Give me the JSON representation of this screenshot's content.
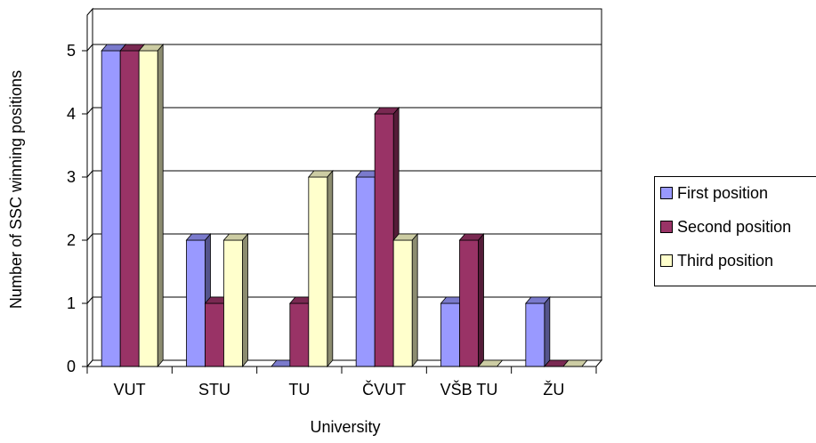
{
  "chart_data": {
    "type": "bar",
    "categories": [
      "VUT",
      "STU",
      "TU",
      "ČVUT",
      "VŠB TU",
      "ŽU"
    ],
    "series": [
      {
        "name": "First position",
        "values": [
          5,
          2,
          0,
          3,
          1,
          1
        ],
        "color": "#9999FF"
      },
      {
        "name": "Second position",
        "values": [
          5,
          1,
          1,
          4,
          2,
          0
        ],
        "color": "#993366"
      },
      {
        "name": "Third position",
        "values": [
          5,
          2,
          3,
          2,
          0,
          0
        ],
        "color": "#FFFFCC"
      }
    ],
    "xlabel": "University",
    "ylabel": "Number of SSC winning positions",
    "ylim": [
      0,
      5
    ],
    "yticks": [
      0,
      1,
      2,
      3,
      4,
      5
    ],
    "grid": true,
    "legend_position": "right",
    "style": "3d-clustered-column"
  }
}
